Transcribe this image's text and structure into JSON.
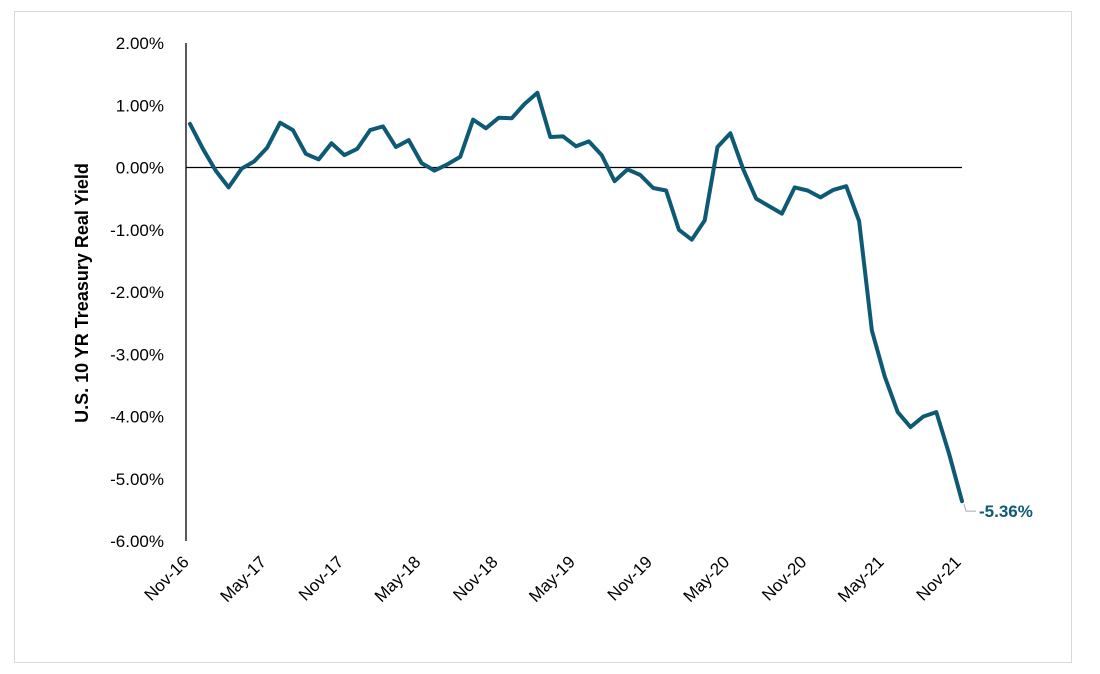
{
  "chart_data": {
    "type": "line",
    "title": "",
    "xlabel": "",
    "ylabel": "U.S. 10 YR Treasury Real Yield",
    "y_ticks": [
      "2.00%",
      "1.00%",
      "0.00%",
      "-1.00%",
      "-2.00%",
      "-3.00%",
      "-4.00%",
      "-5.00%",
      "-6.00%"
    ],
    "ylim": [
      -6,
      2
    ],
    "x_tick_labels": [
      "Nov-16",
      "May-17",
      "Nov-17",
      "May-18",
      "Nov-18",
      "May-19",
      "Nov-19",
      "May-20",
      "Nov-20",
      "May-21",
      "Nov-21"
    ],
    "x_range": [
      "Nov-16",
      "Nov-21"
    ],
    "grid": false,
    "zero_line": true,
    "series_color": "#0e5a74",
    "series": [
      {
        "x": [
          "Nov-16",
          "Dec-16",
          "Jan-17",
          "Feb-17",
          "Mar-17",
          "Apr-17",
          "May-17",
          "Jun-17",
          "Jul-17",
          "Aug-17",
          "Sep-17",
          "Oct-17",
          "Nov-17",
          "Dec-17",
          "Jan-18",
          "Feb-18",
          "Mar-18",
          "Apr-18",
          "May-18",
          "Jun-18",
          "Jul-18",
          "Aug-18",
          "Sep-18",
          "Oct-18",
          "Nov-18",
          "Dec-18",
          "Jan-19",
          "Feb-19",
          "Mar-19",
          "Apr-19",
          "May-19",
          "Jun-19",
          "Jul-19",
          "Aug-19",
          "Sep-19",
          "Oct-19",
          "Nov-19",
          "Dec-19",
          "Jan-20",
          "Feb-20",
          "Mar-20",
          "Apr-20",
          "May-20",
          "Jun-20",
          "Jul-20",
          "Aug-20",
          "Sep-20",
          "Oct-20",
          "Nov-20",
          "Dec-20",
          "Jan-21",
          "Feb-21",
          "Mar-21",
          "Apr-21",
          "May-21",
          "Jun-21",
          "Jul-21",
          "Aug-21",
          "Sep-21",
          "Oct-21",
          "Nov-21"
        ],
        "values": [
          0.7,
          0.3,
          -0.05,
          -0.32,
          -0.02,
          0.1,
          0.32,
          0.72,
          0.6,
          0.22,
          0.13,
          0.39,
          0.2,
          0.3,
          0.6,
          0.66,
          0.33,
          0.44,
          0.07,
          -0.05,
          0.05,
          0.17,
          0.77,
          0.63,
          0.8,
          0.79,
          1.02,
          1.2,
          0.49,
          0.5,
          0.34,
          0.42,
          0.2,
          -0.22,
          -0.03,
          -0.12,
          -0.33,
          -0.37,
          -1.0,
          -1.16,
          -0.85,
          0.33,
          0.55,
          -0.03,
          -0.5,
          -0.62,
          -0.74,
          -0.32,
          -0.37,
          -0.48,
          -0.36,
          -0.3,
          -0.86,
          -2.62,
          -3.36,
          -3.93,
          -4.17,
          -4.0,
          -3.93,
          -4.6,
          -5.36
        ]
      }
    ],
    "end_label": "-5.36%"
  }
}
